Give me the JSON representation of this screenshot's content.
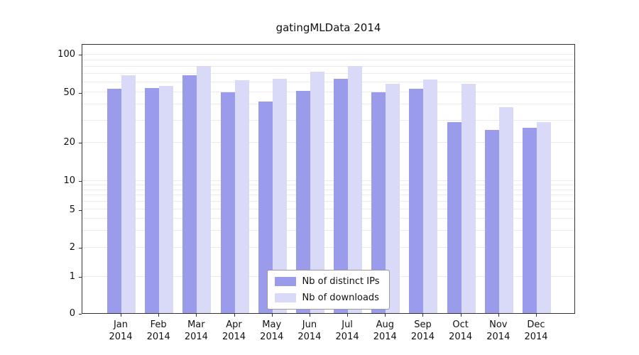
{
  "chart_data": {
    "type": "bar",
    "title": "gatingMLData 2014",
    "categories": [
      "Jan",
      "Feb",
      "Mar",
      "Apr",
      "May",
      "Jun",
      "Jul",
      "Aug",
      "Sep",
      "Oct",
      "Nov",
      "Dec"
    ],
    "year_label": "2014",
    "series": [
      {
        "name": "Nb of distinct IPs",
        "color": "#9b9bec",
        "values": [
          53,
          54,
          68,
          50,
          42,
          51,
          64,
          50,
          53,
          29,
          25,
          26
        ]
      },
      {
        "name": "Nb of downloads",
        "color": "#d9d9f8",
        "values": [
          68,
          56,
          80,
          62,
          64,
          72,
          80,
          58,
          63,
          58,
          38,
          29
        ]
      }
    ],
    "yticks": [
      0,
      1,
      2,
      5,
      10,
      20,
      50,
      100
    ],
    "yscale": "log",
    "ylim": [
      0,
      100
    ],
    "grid": true,
    "legend_position": "bottom-center"
  }
}
